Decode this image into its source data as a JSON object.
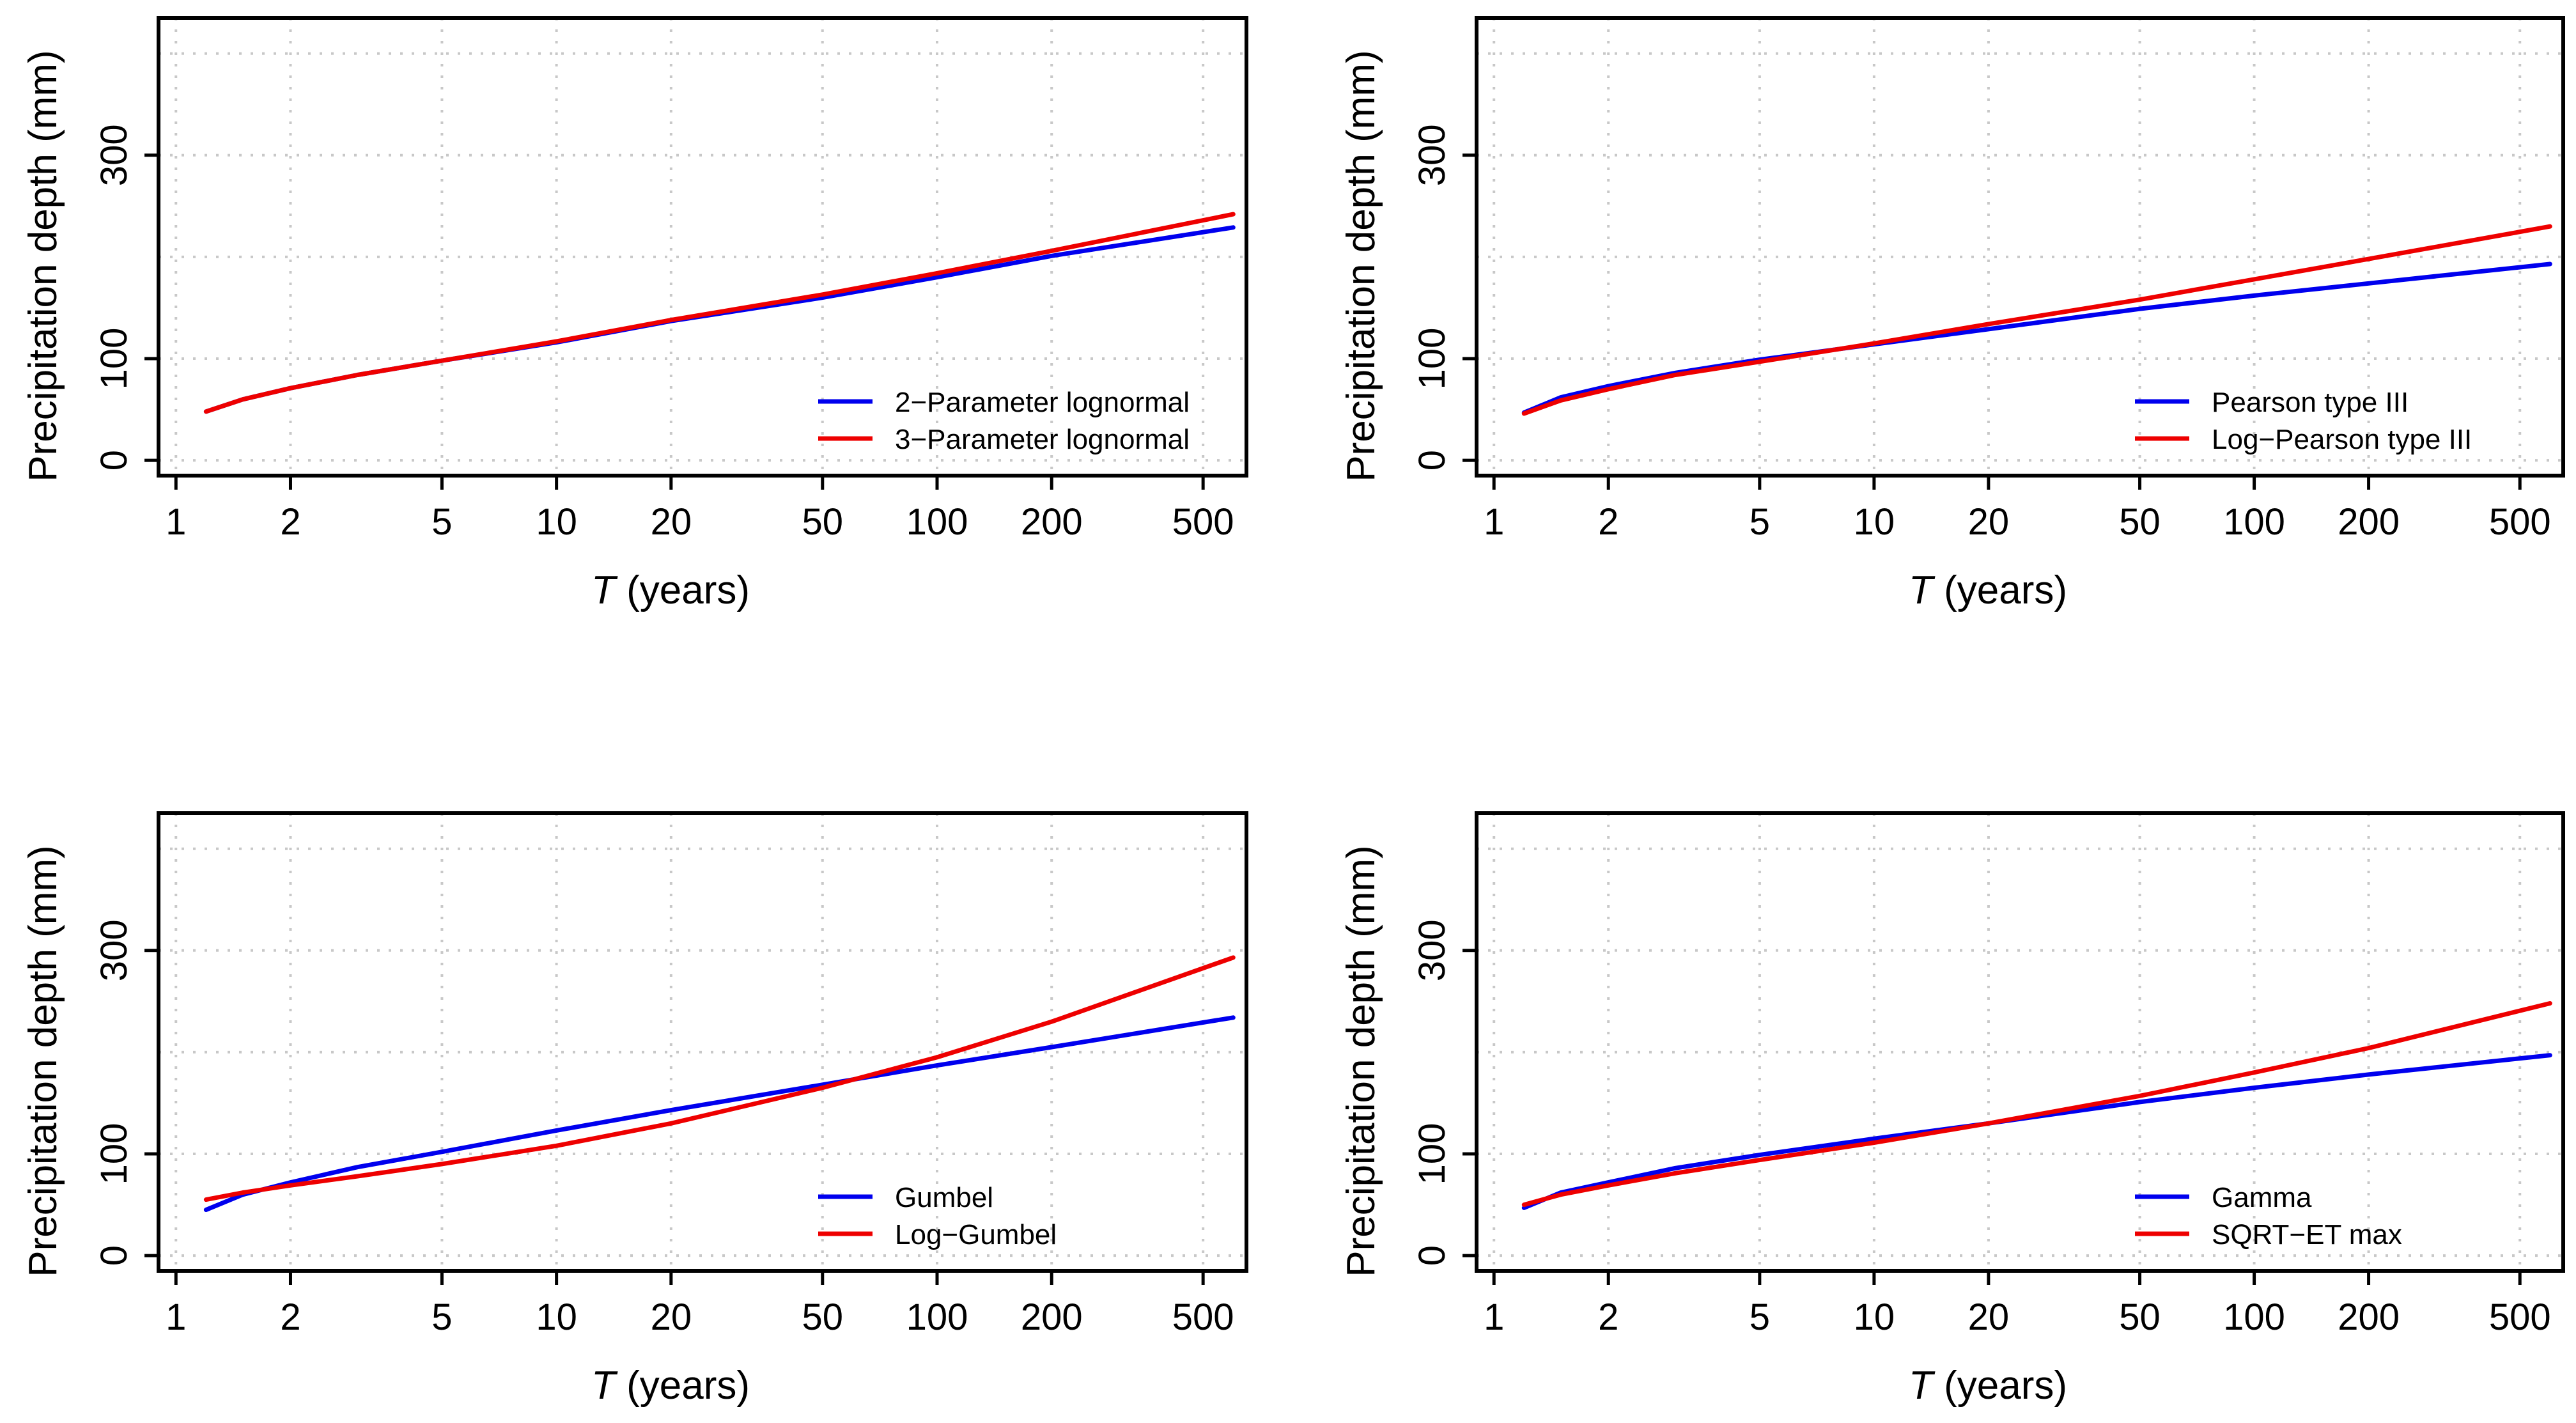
{
  "colors": {
    "series_a": "#0000ee",
    "series_b": "#ee0000",
    "grid": "#c8c8c8",
    "axis": "#000000"
  },
  "chart_data": [
    {
      "type": "line",
      "panel": "top-left",
      "xlabel_italic": "T",
      "xlabel_rest": " (years)",
      "ylabel": "Precipitation depth (mm)",
      "x_scale": "log",
      "xlim": [
        0.9,
        650
      ],
      "ylim": [
        -15,
        435
      ],
      "x_ticks": [
        1,
        2,
        5,
        10,
        20,
        50,
        100,
        200,
        500
      ],
      "x_tick_labels": [
        "1",
        "2",
        "5",
        "10",
        "20",
        "50",
        "100",
        "200",
        "500"
      ],
      "y_ticks": [
        0,
        100,
        300
      ],
      "y_tick_labels": [
        "0",
        "100",
        "300"
      ],
      "y_grid": [
        0,
        100,
        200,
        300,
        400
      ],
      "legend_position": "bottom-right",
      "series": [
        {
          "name": "2−Parameter lognormal",
          "color": "#0000ee",
          "x": [
            1.2,
            1.5,
            2,
            3,
            5,
            10,
            20,
            50,
            100,
            200,
            600
          ],
          "y": [
            48,
            60,
            71,
            84,
            98,
            116,
            137,
            160,
            180,
            201,
            229
          ]
        },
        {
          "name": "3−Parameter lognormal",
          "color": "#ee0000",
          "x": [
            1.2,
            1.5,
            2,
            3,
            5,
            10,
            20,
            50,
            100,
            200,
            600
          ],
          "y": [
            48,
            60,
            71,
            84,
            98,
            117,
            138,
            163,
            184,
            206,
            242
          ]
        }
      ]
    },
    {
      "type": "line",
      "panel": "top-right",
      "xlabel_italic": "T",
      "xlabel_rest": " (years)",
      "ylabel": "Precipitation depth (mm)",
      "x_scale": "log",
      "xlim": [
        0.9,
        650
      ],
      "ylim": [
        -15,
        435
      ],
      "x_ticks": [
        1,
        2,
        5,
        10,
        20,
        50,
        100,
        200,
        500
      ],
      "x_tick_labels": [
        "1",
        "2",
        "5",
        "10",
        "20",
        "50",
        "100",
        "200",
        "500"
      ],
      "y_ticks": [
        0,
        100,
        300
      ],
      "y_tick_labels": [
        "0",
        "100",
        "300"
      ],
      "y_grid": [
        0,
        100,
        200,
        300,
        400
      ],
      "legend_position": "bottom-right",
      "series": [
        {
          "name": "Pearson type III",
          "color": "#0000ee",
          "x": [
            1.2,
            1.5,
            2,
            3,
            5,
            10,
            20,
            50,
            100,
            200,
            600
          ],
          "y": [
            47,
            62,
            73,
            86,
            99,
            114,
            129,
            149,
            162,
            174,
            193
          ]
        },
        {
          "name": "Log−Pearson type III",
          "color": "#ee0000",
          "x": [
            1.2,
            1.5,
            2,
            3,
            5,
            10,
            20,
            50,
            100,
            200,
            600
          ],
          "y": [
            46,
            59,
            70,
            84,
            97,
            115,
            134,
            158,
            178,
            198,
            230
          ]
        }
      ]
    },
    {
      "type": "line",
      "panel": "bottom-left",
      "xlabel_italic": "T",
      "xlabel_rest": " (years)",
      "ylabel": "Precipitation depth (mm)",
      "x_scale": "log",
      "xlim": [
        0.9,
        650
      ],
      "ylim": [
        -15,
        435
      ],
      "x_ticks": [
        1,
        2,
        5,
        10,
        20,
        50,
        100,
        200,
        500
      ],
      "x_tick_labels": [
        "1",
        "2",
        "5",
        "10",
        "20",
        "50",
        "100",
        "200",
        "500"
      ],
      "y_ticks": [
        0,
        100,
        300
      ],
      "y_tick_labels": [
        "0",
        "100",
        "300"
      ],
      "y_grid": [
        0,
        100,
        200,
        300,
        400
      ],
      "legend_position": "bottom-right",
      "series": [
        {
          "name": "Gumbel",
          "color": "#0000ee",
          "x": [
            1.2,
            1.5,
            2,
            3,
            5,
            10,
            20,
            50,
            100,
            200,
            600
          ],
          "y": [
            45,
            60,
            72,
            87,
            102,
            123,
            143,
            168,
            187,
            205,
            234
          ]
        },
        {
          "name": "Log−Gumbel",
          "color": "#ee0000",
          "x": [
            1.2,
            1.5,
            2,
            3,
            5,
            10,
            20,
            50,
            100,
            200,
            600
          ],
          "y": [
            55,
            62,
            69,
            78,
            90,
            108,
            130,
            165,
            195,
            230,
            293
          ]
        }
      ]
    },
    {
      "type": "line",
      "panel": "bottom-right",
      "xlabel_italic": "T",
      "xlabel_rest": " (years)",
      "ylabel": "Precipitation depth (mm)",
      "x_scale": "log",
      "xlim": [
        0.9,
        650
      ],
      "ylim": [
        -15,
        435
      ],
      "x_ticks": [
        1,
        2,
        5,
        10,
        20,
        50,
        100,
        200,
        500
      ],
      "x_tick_labels": [
        "1",
        "2",
        "5",
        "10",
        "20",
        "50",
        "100",
        "200",
        "500"
      ],
      "y_ticks": [
        0,
        100,
        300
      ],
      "y_tick_labels": [
        "0",
        "100",
        "300"
      ],
      "y_grid": [
        0,
        100,
        200,
        300,
        400
      ],
      "legend_position": "bottom-right",
      "series": [
        {
          "name": "Gamma",
          "color": "#0000ee",
          "x": [
            1.2,
            1.5,
            2,
            3,
            5,
            10,
            20,
            50,
            100,
            200,
            600
          ],
          "y": [
            47,
            62,
            72,
            86,
            99,
            115,
            130,
            151,
            165,
            178,
            197
          ]
        },
        {
          "name": "SQRT−ET max",
          "color": "#ee0000",
          "x": [
            1.2,
            1.5,
            2,
            3,
            5,
            10,
            20,
            50,
            100,
            200,
            600
          ],
          "y": [
            50,
            60,
            69,
            81,
            94,
            111,
            130,
            157,
            180,
            204,
            248
          ]
        }
      ]
    }
  ]
}
